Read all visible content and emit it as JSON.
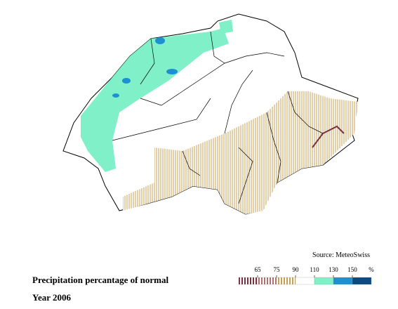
{
  "title": "Precipitation percantage of normal",
  "subtitle": "Year 2006",
  "source": "Source: MeteoSwiss",
  "legend": {
    "ticks": [
      65,
      75,
      90,
      110,
      130,
      150
    ],
    "unit": "%",
    "classes": [
      {
        "color": "#7a3040",
        "hatched": true
      },
      {
        "color": "#b07070",
        "hatched": true
      },
      {
        "color": "#c8a050",
        "hatched": true
      },
      {
        "color": "#ffffff",
        "hatched": false
      },
      {
        "color": "#7ff0c8",
        "hatched": false
      },
      {
        "color": "#1e90d0",
        "hatched": false
      },
      {
        "color": "#0a4a80",
        "hatched": false
      }
    ]
  }
}
